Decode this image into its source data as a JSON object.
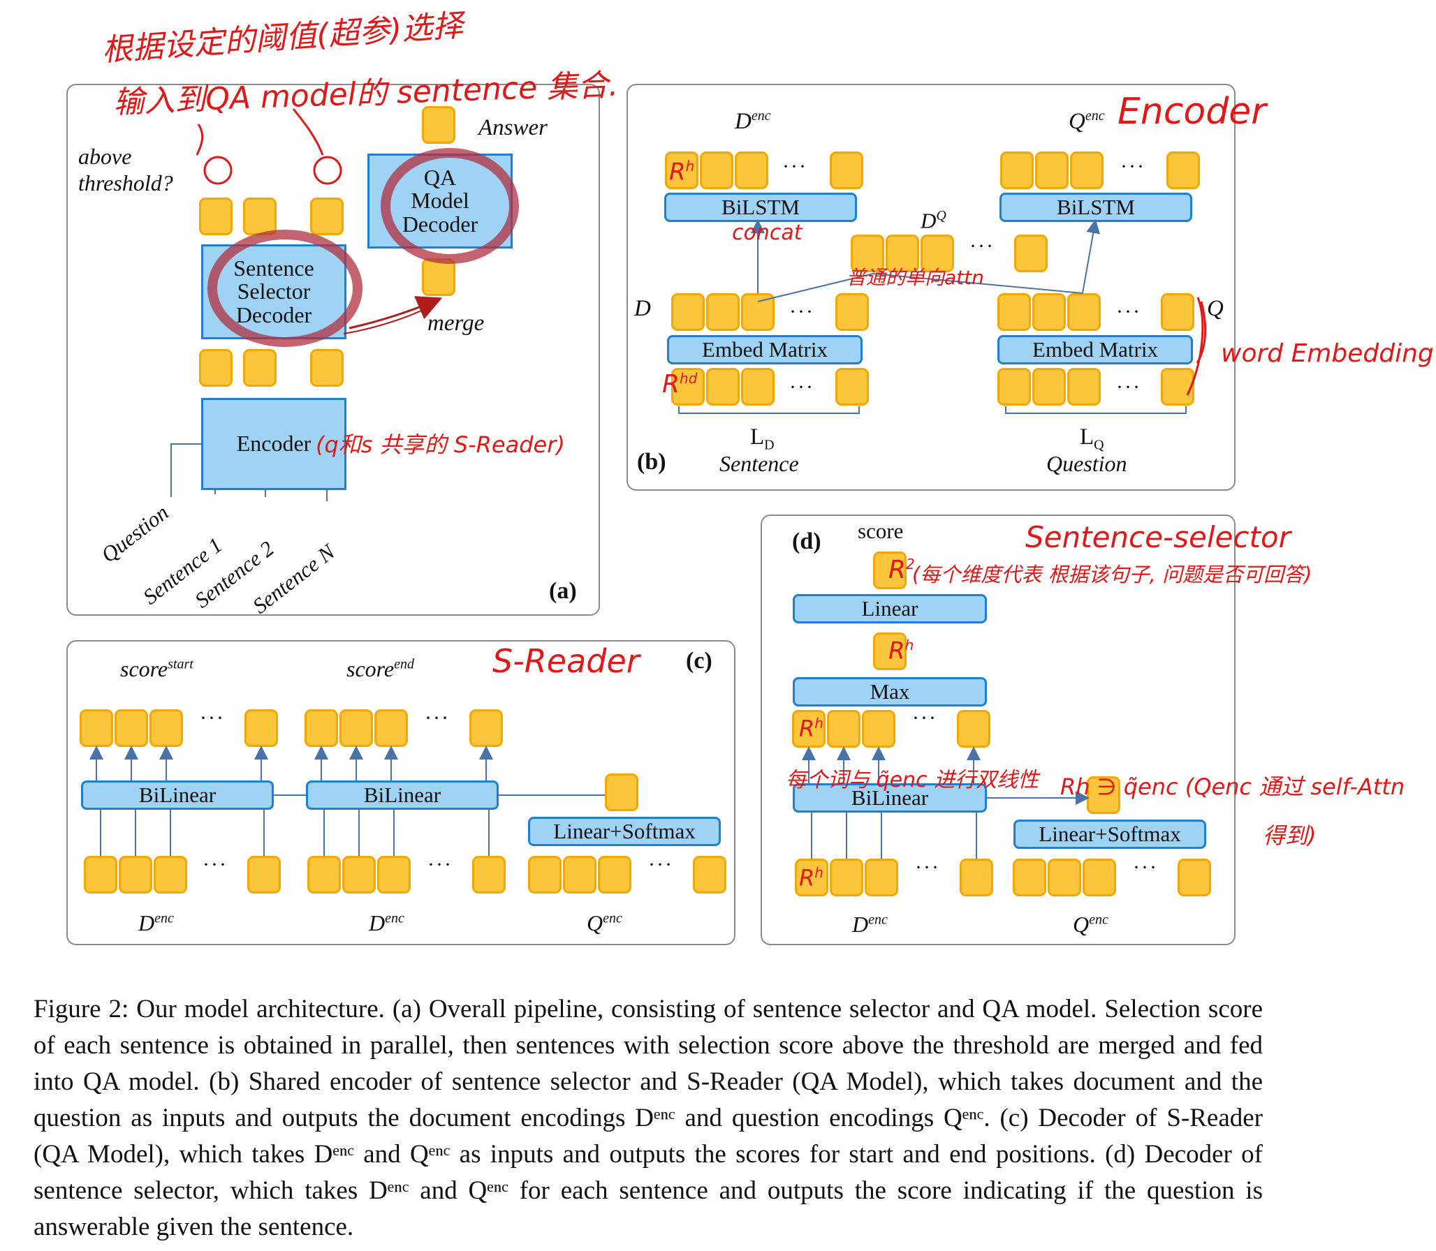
{
  "panel_a": {
    "tag": "(a)",
    "above_threshold": "above\nthreshold?",
    "answer": "Answer",
    "merge": "merge",
    "qa_box": "QA\nModel\nDecoder",
    "selector_box": "Sentence\nSelector\nDecoder",
    "encoder_box": "Encoder",
    "inputs": [
      "Question",
      "Sentence 1",
      "Sentence 2",
      "Sentence N"
    ]
  },
  "panel_b": {
    "tag": "(b)",
    "d_enc": "D",
    "q_enc": "Q",
    "enc_sup": "enc",
    "dq": "D",
    "dq_sup": "Q",
    "bilstm": "BiLSTM",
    "embed": "Embed Matrix",
    "d_label": "D",
    "q_label": "Q",
    "ld_main": "L",
    "ld_sub": "D",
    "lq_main": "L",
    "lq_sub": "Q",
    "sentence": "Sentence",
    "question": "Question",
    "dots": "···"
  },
  "panel_c": {
    "tag": "(c)",
    "score": "score",
    "start_sup": "start",
    "end_sup": "end",
    "bilinear": "BiLinear",
    "linear_softmax": "Linear+Softmax",
    "d_enc": "D",
    "q_enc": "Q",
    "enc_sup": "enc"
  },
  "panel_d": {
    "tag": "(d)",
    "score": "score",
    "linear": "Linear",
    "max": "Max",
    "bilinear": "BiLinear",
    "linear_softmax": "Linear+Softmax",
    "d_enc": "D",
    "q_enc": "Q",
    "enc_sup": "enc"
  },
  "handwriting": {
    "top_line1": "根据设定的阈值(超参)选择",
    "top_line2": "输入到QA model的 sentence 集合.",
    "encoder_note": "(q和s 共享的 S-Reader)",
    "encoder_title": "Encoder",
    "word_embedding": "word Embedding",
    "concat": "concat",
    "attn_note": "普通的单向attn",
    "rh": "R",
    "rh_sup": "h",
    "rhd_sup": "hd",
    "s_reader": "S-Reader",
    "sentence_selector": "Sentence-selector",
    "r2_sup": "2",
    "score_note": "(每个维度代表 根据该句子, 问题是否可回答)",
    "bilinear_note": "每个词与 q̃enc 进行双线性",
    "qtilde_note": "Rh ∋ q̃enc (Qenc 通过 self-Attn",
    "qtilde_note2": "得到)"
  },
  "caption": "Figure 2: Our model architecture. (a) Overall pipeline, consisting of sentence selector and QA model. Selection score of each sentence is obtained in parallel, then sentences with selection score above the threshold are merged and fed into QA model. (b) Shared encoder of sentence selector and S-Reader (QA Model), which takes document and the question as inputs and outputs the document encodings Dᵉⁿᶜ and question encodings Qᵉⁿᶜ. (c) Decoder of S-Reader (QA Model), which takes Dᵉⁿᶜ and Qᵉⁿᶜ as inputs and outputs the scores for start and end positions. (d) Decoder of sentence selector, which takes Dᵉⁿᶜ and Qᵉⁿᶜ for each sentence and outputs the score indicating if the question is answerable given the sentence."
}
